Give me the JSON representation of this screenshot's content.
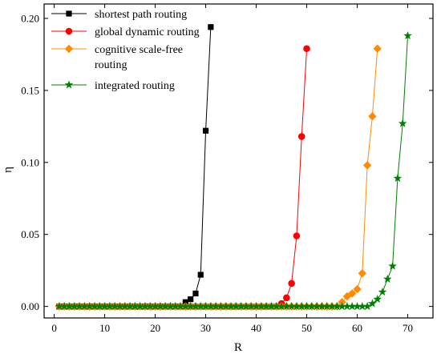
{
  "chart_data": {
    "type": "line",
    "xlabel": "R",
    "ylabel": "η",
    "xlim": [
      -2,
      75
    ],
    "ylim": [
      -0.008,
      0.21
    ],
    "xticks": [
      0,
      10,
      20,
      30,
      40,
      50,
      60,
      70
    ],
    "yticks": [
      0.0,
      0.05,
      0.1,
      0.15,
      0.2
    ],
    "ytick_labels": [
      "0.00",
      "0.05",
      "0.10",
      "0.15",
      "0.20"
    ],
    "grid": false,
    "legend_position": "top-left",
    "series": [
      {
        "name": "shortest path routing",
        "color": "#000000",
        "marker": "square",
        "x": [
          1,
          2,
          3,
          4,
          5,
          6,
          7,
          8,
          9,
          10,
          11,
          12,
          13,
          14,
          15,
          16,
          17,
          18,
          19,
          20,
          21,
          22,
          23,
          24,
          25,
          26,
          27,
          28,
          29,
          30,
          31
        ],
        "y": [
          0,
          0,
          0,
          0,
          0,
          0,
          0,
          0,
          0,
          0,
          0,
          0,
          0,
          0,
          0,
          0,
          0,
          0,
          0,
          0,
          0,
          0,
          0,
          0,
          0,
          0.003,
          0.005,
          0.009,
          0.022,
          0.122,
          0.194
        ]
      },
      {
        "name": "global dynamic routing",
        "color": "#ff0000",
        "marker": "circle",
        "x": [
          1,
          2,
          3,
          4,
          5,
          6,
          7,
          8,
          9,
          10,
          11,
          12,
          13,
          14,
          15,
          16,
          17,
          18,
          19,
          20,
          21,
          22,
          23,
          24,
          25,
          26,
          27,
          28,
          29,
          30,
          31,
          32,
          33,
          34,
          35,
          36,
          37,
          38,
          39,
          40,
          41,
          42,
          43,
          44,
          45,
          46,
          47,
          48,
          49,
          50
        ],
        "y": [
          0,
          0,
          0,
          0,
          0,
          0,
          0,
          0,
          0,
          0,
          0,
          0,
          0,
          0,
          0,
          0,
          0,
          0,
          0,
          0,
          0,
          0,
          0,
          0,
          0,
          0,
          0,
          0,
          0,
          0,
          0,
          0,
          0,
          0,
          0,
          0,
          0,
          0,
          0,
          0,
          0,
          0,
          0,
          0,
          0.002,
          0.006,
          0.016,
          0.049,
          0.118,
          0.179
        ]
      },
      {
        "name": "cognitive scale-free routing",
        "legend_lines": [
          "cognitive scale-free",
          "routing"
        ],
        "color": "#ff8c00",
        "marker": "diamond",
        "x": [
          1,
          2,
          3,
          4,
          5,
          6,
          7,
          8,
          9,
          10,
          11,
          12,
          13,
          14,
          15,
          16,
          17,
          18,
          19,
          20,
          21,
          22,
          23,
          24,
          25,
          26,
          27,
          28,
          29,
          30,
          31,
          32,
          33,
          34,
          35,
          36,
          37,
          38,
          39,
          40,
          41,
          42,
          43,
          44,
          45,
          46,
          47,
          48,
          49,
          50,
          51,
          52,
          53,
          54,
          55,
          56,
          57,
          58,
          59,
          60,
          61,
          62,
          63,
          64
        ],
        "y": [
          0,
          0,
          0,
          0,
          0,
          0,
          0,
          0,
          0,
          0,
          0,
          0,
          0,
          0,
          0,
          0,
          0,
          0,
          0,
          0,
          0,
          0,
          0,
          0,
          0,
          0,
          0,
          0,
          0,
          0,
          0,
          0,
          0,
          0,
          0,
          0,
          0,
          0,
          0,
          0,
          0,
          0,
          0,
          0,
          0,
          0,
          0,
          0,
          0,
          0,
          0,
          0,
          0,
          0,
          0,
          0,
          0.003,
          0.007,
          0.009,
          0.012,
          0.023,
          0.098,
          0.132,
          0.179
        ]
      },
      {
        "name": "integrated routing",
        "color": "#008000",
        "marker": "star",
        "x": [
          1,
          2,
          3,
          4,
          5,
          6,
          7,
          8,
          9,
          10,
          11,
          12,
          13,
          14,
          15,
          16,
          17,
          18,
          19,
          20,
          21,
          22,
          23,
          24,
          25,
          26,
          27,
          28,
          29,
          30,
          31,
          32,
          33,
          34,
          35,
          36,
          37,
          38,
          39,
          40,
          41,
          42,
          43,
          44,
          45,
          46,
          47,
          48,
          49,
          50,
          51,
          52,
          53,
          54,
          55,
          56,
          57,
          58,
          59,
          60,
          61,
          62,
          63,
          64,
          65,
          66,
          67,
          68,
          69,
          70
        ],
        "y": [
          0,
          0,
          0,
          0,
          0,
          0,
          0,
          0,
          0,
          0,
          0,
          0,
          0,
          0,
          0,
          0,
          0,
          0,
          0,
          0,
          0,
          0,
          0,
          0,
          0,
          0,
          0,
          0,
          0,
          0,
          0,
          0,
          0,
          0,
          0,
          0,
          0,
          0,
          0,
          0,
          0,
          0,
          0,
          0,
          0,
          0,
          0,
          0,
          0,
          0,
          0,
          0,
          0,
          0,
          0,
          0,
          0,
          0,
          0,
          0,
          0,
          0,
          0.002,
          0.005,
          0.01,
          0.019,
          0.028,
          0.089,
          0.127,
          0.188
        ]
      }
    ]
  }
}
